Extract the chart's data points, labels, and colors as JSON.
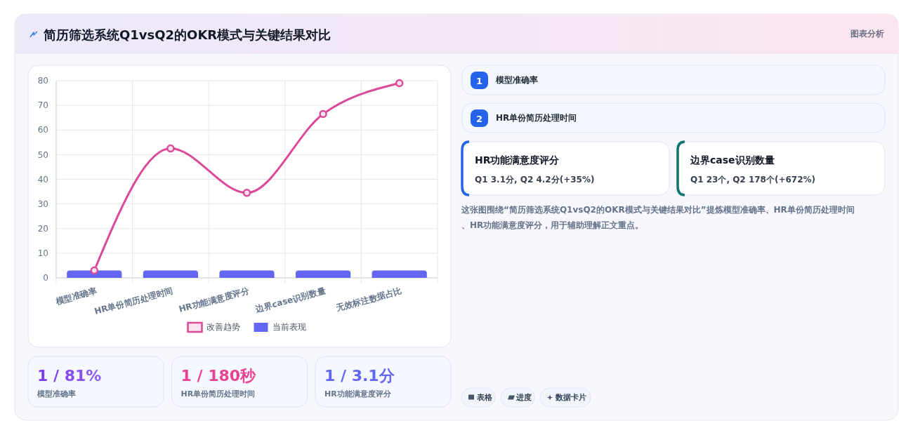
{
  "chart_data": {
    "type": "bar",
    "title": "简历筛选系统Q1vsQ2的OKR模式与关键结果对比",
    "categories": [
      "模型准确率",
      "HR单份简历处理时间",
      "HR功能满意度评分",
      "边界case识别数量",
      "无效标注数据占比"
    ],
    "series": [
      {
        "name": "改善趋势",
        "type": "line",
        "color": "#db4a98",
        "values": [
          3,
          52.5,
          34.5,
          66.5,
          79
        ]
      },
      {
        "name": "当前表现",
        "color": "#6366f1",
        "values": [
          3,
          3,
          3,
          3,
          3
        ]
      }
    ],
    "ylim": [
      0,
      80
    ],
    "yticks": [
      0,
      10,
      20,
      30,
      40,
      50,
      60,
      70,
      80
    ],
    "grid": true,
    "legend": "bottom",
    "marker": "circle",
    "line_style": "solid",
    "annotations": [
      "图表分析",
      "1",
      "模型准确率",
      "2",
      "HR单份简历处理时间",
      "HR功能满意度评分",
      "Q1 3.1分, Q2 4.2分(+35%)",
      "边界case识别数量",
      "Q1 23个, Q2 178个(+672%)",
      "这张图围绕“简历筛选系统Q1vsQ2的OKR模式与关键结果对比”提炼模型准确率、HR单份简历处理时间、HR功能满意度评分，用于辅助理解正文重点。",
      "1 / 81%",
      "模型准确率",
      "1 / 180秒",
      "HR单份简历处理时间",
      "1 / 3.1分",
      "HR功能满意度评分",
      "表格",
      "进度",
      "数据卡片"
    ]
  }
}
